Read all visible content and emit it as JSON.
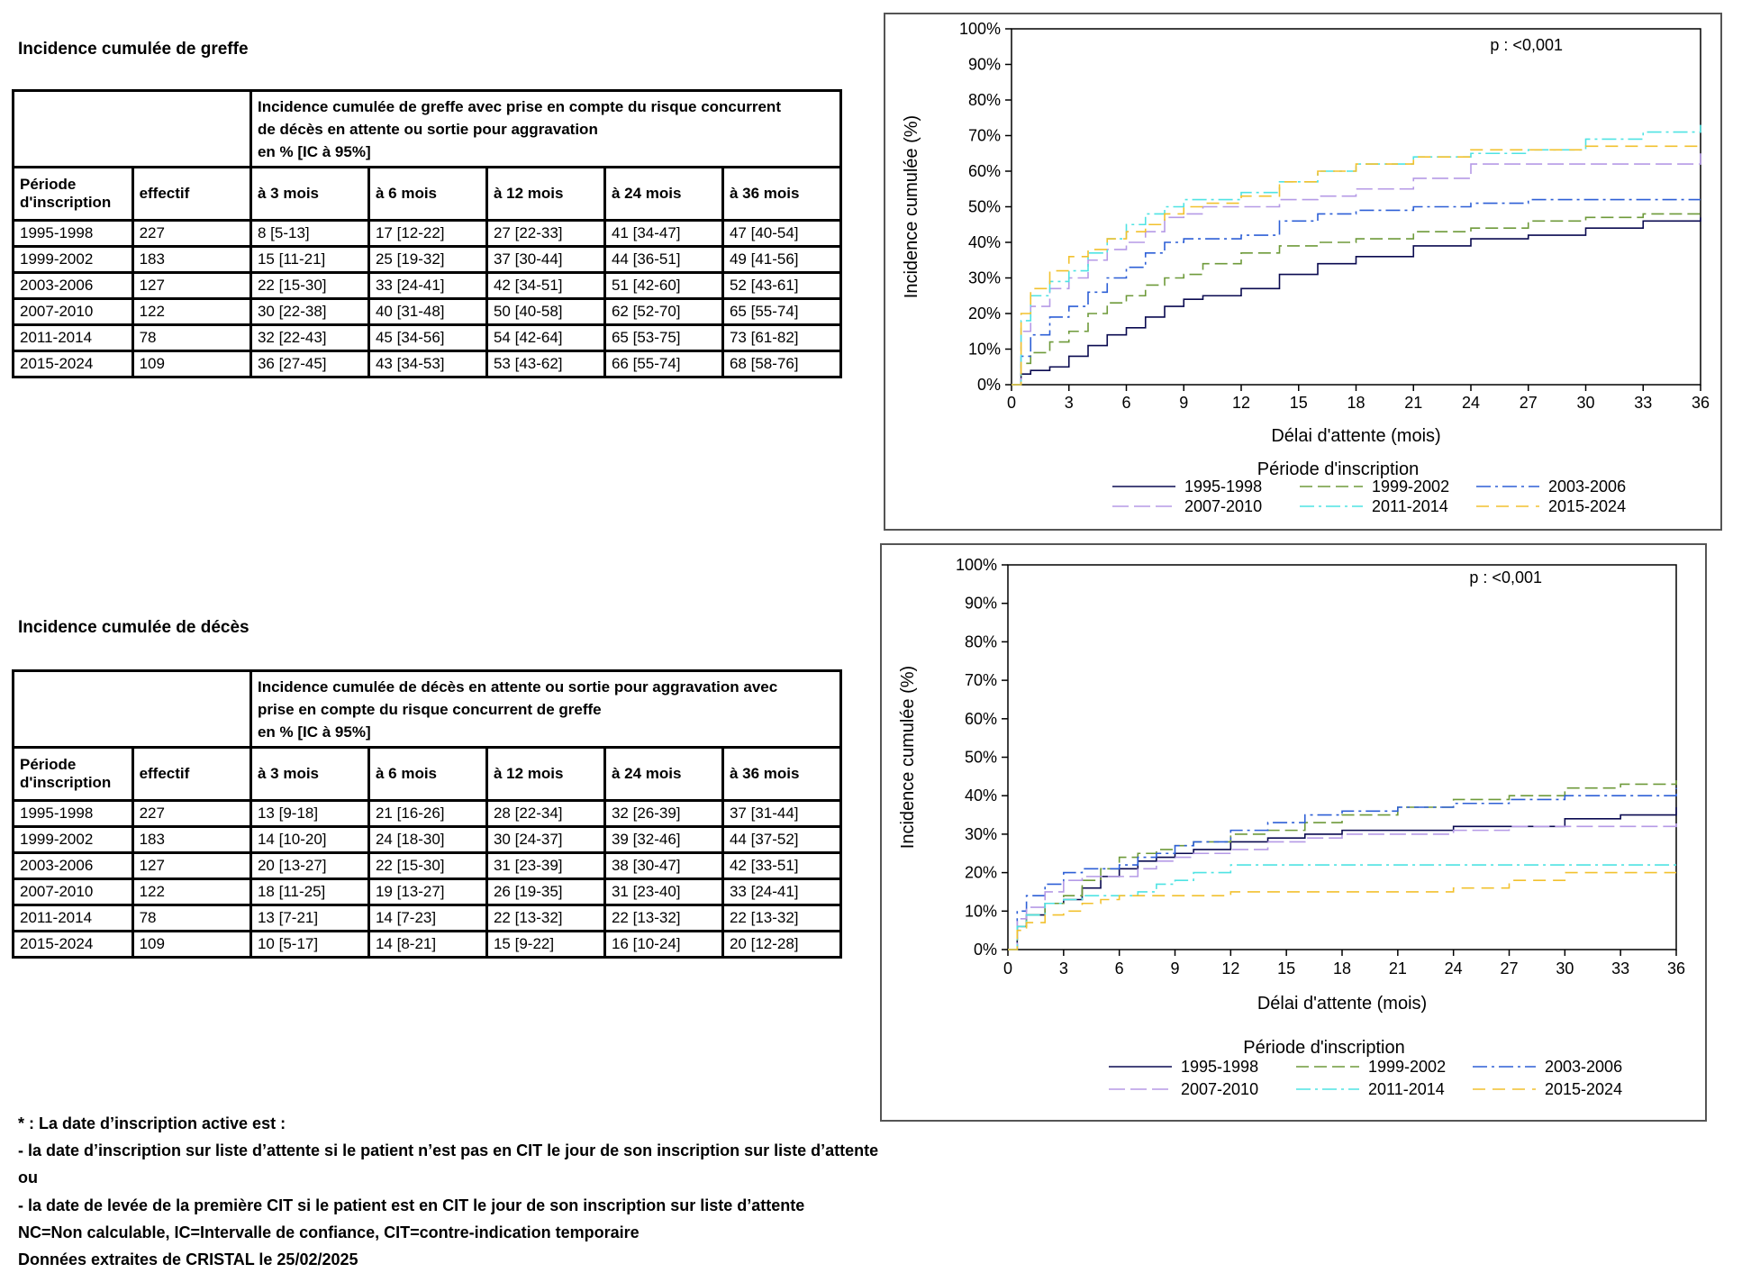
{
  "greffe": {
    "title": "Incidence cumulée de greffe",
    "table": {
      "caption": [
        "Incidence cumulée de greffe avec prise en compte du risque concurrent",
        "de décès en attente ou sortie pour aggravation",
        "en % [IC à 95%]"
      ],
      "headers": [
        "Période d'inscription",
        "effectif",
        "à 3 mois",
        "à 6 mois",
        "à 12 mois",
        "à 24 mois",
        "à 36 mois"
      ],
      "rows": [
        [
          "1995-1998",
          "227",
          "8 [5-13]",
          "17 [12-22]",
          "27 [22-33]",
          "41 [34-47]",
          "47 [40-54]"
        ],
        [
          "1999-2002",
          "183",
          "15 [11-21]",
          "25 [19-32]",
          "37 [30-44]",
          "44 [36-51]",
          "49 [41-56]"
        ],
        [
          "2003-2006",
          "127",
          "22 [15-30]",
          "33 [24-41]",
          "42 [34-51]",
          "51 [42-60]",
          "52 [43-61]"
        ],
        [
          "2007-2010",
          "122",
          "30 [22-38]",
          "40 [31-48]",
          "50 [40-58]",
          "62 [52-70]",
          "65 [55-74]"
        ],
        [
          "2011-2014",
          "78",
          "32 [22-43]",
          "45 [34-56]",
          "54 [42-64]",
          "65 [53-75]",
          "73 [61-82]"
        ],
        [
          "2015-2024",
          "109",
          "36 [27-45]",
          "43 [34-53]",
          "53 [43-62]",
          "66 [55-74]",
          "68 [58-76]"
        ]
      ]
    }
  },
  "deces": {
    "title": "Incidence cumulée de décès",
    "table": {
      "caption": [
        "Incidence cumulée de décès en attente ou sortie pour aggravation avec",
        "prise en compte du risque concurrent de greffe",
        "en % [IC à 95%]"
      ],
      "headers": [
        "Période d'inscription",
        "effectif",
        "à 3 mois",
        "à 6 mois",
        "à 12 mois",
        "à 24 mois",
        "à 36 mois"
      ],
      "rows": [
        [
          "1995-1998",
          "227",
          "13 [9-18]",
          "21 [16-26]",
          "28 [22-34]",
          "32 [26-39]",
          "37 [31-44]"
        ],
        [
          "1999-2002",
          "183",
          "14 [10-20]",
          "24 [18-30]",
          "30 [24-37]",
          "39 [32-46]",
          "44 [37-52]"
        ],
        [
          "2003-2006",
          "127",
          "20 [13-27]",
          "22 [15-30]",
          "31 [23-39]",
          "38 [30-47]",
          "42 [33-51]"
        ],
        [
          "2007-2010",
          "122",
          "18 [11-25]",
          "19 [13-27]",
          "26 [19-35]",
          "31 [23-40]",
          "33 [24-41]"
        ],
        [
          "2011-2014",
          "78",
          "13 [7-21]",
          "14 [7-23]",
          "22 [13-32]",
          "22 [13-32]",
          "22 [13-32]"
        ],
        [
          "2015-2024",
          "109",
          "10 [5-17]",
          "14 [8-21]",
          "15 [9-22]",
          "16 [10-24]",
          "20 [12-28]"
        ]
      ]
    }
  },
  "chart_data": [
    {
      "type": "line",
      "ylabel": "Incidence cumulée (%)",
      "xlabel": "Délai d'attente (mois)",
      "annotation": "p : <0,001",
      "legend_title": "Période d'inscription",
      "xlim": [
        0,
        36
      ],
      "ylim": [
        0,
        100
      ],
      "x_ticks": [
        0,
        3,
        6,
        9,
        12,
        15,
        18,
        21,
        24,
        27,
        30,
        33,
        36
      ],
      "y_ticks": [
        "0%",
        "10%",
        "20%",
        "30%",
        "40%",
        "50%",
        "60%",
        "70%",
        "80%",
        "90%",
        "100%"
      ],
      "x": [
        0,
        0.5,
        1,
        2,
        3,
        4,
        5,
        6,
        7,
        8,
        9,
        10,
        12,
        14,
        16,
        18,
        21,
        24,
        27,
        30,
        33,
        36
      ],
      "series": [
        {
          "name": "1995-1998",
          "color": "#0a0a50",
          "dash": "",
          "values": [
            0,
            3,
            4,
            5,
            8,
            11,
            14,
            16,
            19,
            22,
            24,
            25,
            27,
            31,
            34,
            36,
            39,
            41,
            42,
            44,
            46,
            47
          ]
        },
        {
          "name": "1999-2002",
          "color": "#6e9a3a",
          "dash": "14 6",
          "values": [
            0,
            6,
            9,
            12,
            15,
            20,
            23,
            25,
            28,
            30,
            31,
            34,
            37,
            39,
            40,
            41,
            43,
            44,
            46,
            47,
            48,
            49
          ]
        },
        {
          "name": "2003-2006",
          "color": "#2d5fd6",
          "dash": "16 5 3 5",
          "values": [
            0,
            8,
            14,
            19,
            22,
            26,
            30,
            33,
            37,
            40,
            41,
            41,
            42,
            46,
            48,
            49,
            50,
            51,
            52,
            52,
            52,
            52
          ]
        },
        {
          "name": "2007-2010",
          "color": "#b59ae6",
          "dash": "18 6",
          "values": [
            0,
            15,
            22,
            27,
            30,
            35,
            38,
            40,
            43,
            47,
            48,
            50,
            50,
            52,
            53,
            55,
            58,
            62,
            62,
            62,
            62,
            65
          ]
        },
        {
          "name": "2011-2014",
          "color": "#4fe3e3",
          "dash": "16 5 3 5",
          "values": [
            0,
            18,
            25,
            29,
            32,
            37,
            41,
            45,
            48,
            50,
            52,
            52,
            54,
            57,
            60,
            62,
            64,
            65,
            66,
            69,
            71,
            73
          ]
        },
        {
          "name": "2015-2024",
          "color": "#f2c12e",
          "dash": "14 8",
          "values": [
            0,
            20,
            27,
            32,
            36,
            38,
            41,
            43,
            45,
            48,
            50,
            51,
            53,
            57,
            60,
            62,
            64,
            66,
            66,
            67,
            67,
            68
          ]
        }
      ]
    },
    {
      "type": "line",
      "ylabel": "Incidence cumulée (%)",
      "xlabel": "Délai d'attente (mois)",
      "annotation": "p : <0,001",
      "legend_title": "Période d'inscription",
      "xlim": [
        0,
        36
      ],
      "ylim": [
        0,
        100
      ],
      "x_ticks": [
        0,
        3,
        6,
        9,
        12,
        15,
        18,
        21,
        24,
        27,
        30,
        33,
        36
      ],
      "y_ticks": [
        "0%",
        "10%",
        "20%",
        "30%",
        "40%",
        "50%",
        "60%",
        "70%",
        "80%",
        "90%",
        "100%"
      ],
      "x": [
        0,
        0.5,
        1,
        2,
        3,
        4,
        5,
        6,
        7,
        8,
        9,
        10,
        12,
        14,
        16,
        18,
        21,
        24,
        27,
        30,
        33,
        36
      ],
      "series": [
        {
          "name": "1995-1998",
          "color": "#0a0a50",
          "dash": "",
          "values": [
            0,
            6,
            9,
            12,
            13,
            16,
            19,
            21,
            23,
            24,
            25,
            26,
            28,
            29,
            30,
            31,
            31,
            32,
            32,
            34,
            35,
            37
          ]
        },
        {
          "name": "1999-2002",
          "color": "#6e9a3a",
          "dash": "14 6",
          "values": [
            0,
            6,
            9,
            12,
            14,
            18,
            21,
            24,
            25,
            26,
            27,
            28,
            30,
            31,
            33,
            35,
            37,
            39,
            40,
            42,
            43,
            44
          ]
        },
        {
          "name": "2003-2006",
          "color": "#2d5fd6",
          "dash": "16 5 3 5",
          "values": [
            0,
            10,
            14,
            17,
            20,
            21,
            21,
            22,
            24,
            25,
            27,
            28,
            31,
            33,
            35,
            36,
            37,
            38,
            39,
            40,
            40,
            42
          ]
        },
        {
          "name": "2007-2010",
          "color": "#b59ae6",
          "dash": "18 6",
          "values": [
            0,
            8,
            11,
            15,
            18,
            19,
            19,
            19,
            21,
            23,
            24,
            25,
            26,
            28,
            29,
            30,
            30,
            31,
            32,
            32,
            32,
            33
          ]
        },
        {
          "name": "2011-2014",
          "color": "#4fe3e3",
          "dash": "16 5 3 5",
          "values": [
            0,
            6,
            9,
            12,
            13,
            14,
            14,
            14,
            15,
            17,
            18,
            20,
            22,
            22,
            22,
            22,
            22,
            22,
            22,
            22,
            22,
            22
          ]
        },
        {
          "name": "2015-2024",
          "color": "#f2c12e",
          "dash": "14 8",
          "values": [
            0,
            5,
            7,
            9,
            10,
            12,
            13,
            14,
            14,
            14,
            14,
            14,
            15,
            15,
            15,
            15,
            15,
            16,
            18,
            20,
            20,
            20
          ]
        }
      ]
    }
  ],
  "notes": [
    "* : La date d’inscription active est :",
    "- la date d’inscription sur liste d’attente si le patient n’est pas en CIT le jour de son inscription sur liste d’attente",
    "ou",
    "- la date de levée de la première CIT si le patient est en CIT le jour de son inscription sur liste d’attente",
    "NC=Non calculable, IC=Intervalle de confiance, CIT=contre-indication temporaire",
    "Données extraites de CRISTAL le 25/02/2025"
  ]
}
